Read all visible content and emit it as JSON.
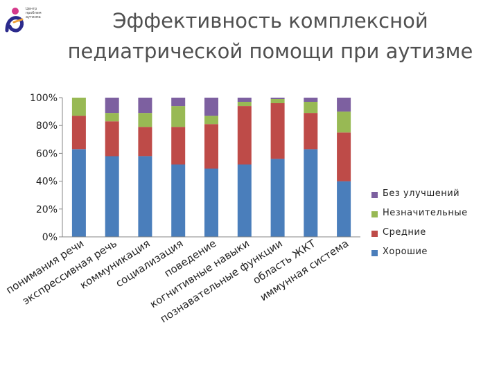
{
  "logo": {
    "text": "Центр\nпроблем\nаутизма",
    "colors": [
      "#2b2a8c",
      "#d63a8c",
      "#f0a13a"
    ]
  },
  "title": {
    "line1": "Эффективность комплексной",
    "line2": "педиатрической помощи при аутизме"
  },
  "chart_data": {
    "type": "bar",
    "stacked": "percent",
    "categories": [
      "понимания речи",
      "экспрессивная речь",
      "коммуникация",
      "социализация",
      "поведение",
      "когнитивные навыки",
      "познавательные функции",
      "область ЖКТ",
      "иммунная система"
    ],
    "series": [
      {
        "name": "Хорошие",
        "color": "#4a7ebb",
        "values": [
          63,
          58,
          58,
          52,
          49,
          52,
          56,
          63,
          40
        ]
      },
      {
        "name": "Средние",
        "color": "#be4b48",
        "values": [
          24,
          25,
          21,
          27,
          32,
          42,
          40,
          26,
          35
        ]
      },
      {
        "name": "Незначительные",
        "color": "#98b954",
        "values": [
          13,
          6,
          10,
          15,
          6,
          3,
          3,
          8,
          15
        ]
      },
      {
        "name": "Без улучшений",
        "color": "#7d60a0",
        "values": [
          0,
          11,
          11,
          6,
          13,
          3,
          1,
          3,
          10
        ]
      }
    ],
    "yticks": [
      "0%",
      "20%",
      "40%",
      "60%",
      "80%",
      "100%"
    ],
    "ylim": [
      0,
      100
    ],
    "grid": false,
    "legend_position": "right",
    "legend_order": [
      "Без улучшений",
      "Незначительные",
      "Средние",
      "Хорошие"
    ]
  }
}
